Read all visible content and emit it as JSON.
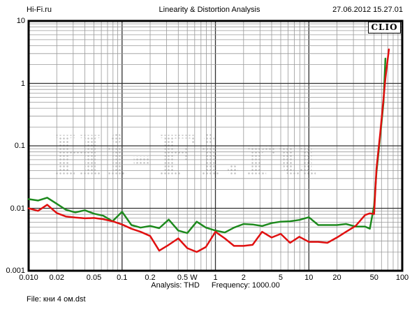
{
  "header": {
    "site": "Hi-Fi.ru",
    "title": "Linearity & Distortion Analysis",
    "datetime": "27.06.2012 15.27.01"
  },
  "overlay": {
    "logo": "CLIO",
    "watermark": "Hi-Fi.ru"
  },
  "footer": {
    "analysis": "Analysis: THD",
    "frequency": "Frequency: 1000.00",
    "file": "File: кни 4 ом.dst"
  },
  "chart_data": {
    "type": "line",
    "title": "Linearity & Distortion Analysis",
    "xlabel": "W",
    "ylabel": "THD",
    "x_axis": {
      "scale": "log",
      "min": 0.01,
      "max": 100,
      "unit": "W",
      "tick_values": [
        0.01,
        0.02,
        0.05,
        0.1,
        0.2,
        0.5,
        1,
        2,
        5,
        10,
        20,
        50,
        100
      ],
      "tick_labels": [
        "0.010",
        "0.02",
        "0.05",
        "0.1",
        "0.2",
        "0.5 W",
        "1",
        "2",
        "5",
        "10",
        "20",
        "50",
        "100"
      ]
    },
    "y_axis": {
      "scale": "log",
      "min": 0.001,
      "max": 10,
      "tick_values": [
        10,
        1,
        0.1,
        0.01,
        0.001
      ],
      "tick_labels": [
        "10",
        "1",
        "0.1",
        "0.01",
        "0.001"
      ]
    },
    "grid": "log major+minor",
    "legend": "none",
    "x": [
      0.01,
      0.0126,
      0.0158,
      0.02,
      0.025,
      0.0316,
      0.04,
      0.05,
      0.063,
      0.079,
      0.1,
      0.126,
      0.158,
      0.2,
      0.25,
      0.316,
      0.4,
      0.5,
      0.63,
      0.79,
      1,
      1.26,
      1.58,
      2,
      2.5,
      3.16,
      4,
      5,
      6.3,
      7.9,
      10,
      12.6,
      15.8,
      20,
      25,
      31.6,
      40,
      45,
      50,
      53,
      58,
      63,
      66,
      72
    ],
    "series": [
      {
        "name": "green-curve",
        "color": "#1e8a1e",
        "values": [
          0.014,
          0.0133,
          0.0148,
          0.0118,
          0.0095,
          0.0086,
          0.0093,
          0.0082,
          0.0076,
          0.0062,
          0.0088,
          0.0054,
          0.0049,
          0.0052,
          0.0048,
          0.0066,
          0.0044,
          0.004,
          0.0061,
          0.0049,
          0.0044,
          0.0041,
          0.0049,
          0.0056,
          0.0055,
          0.0052,
          0.0058,
          0.0061,
          0.0062,
          0.0065,
          0.0072,
          0.0054,
          0.0054,
          0.0054,
          0.0056,
          0.0051,
          0.0051,
          0.0047,
          0.011,
          0.038,
          0.14,
          0.5,
          2.5,
          null
        ]
      },
      {
        "name": "red-curve",
        "color": "#e01010",
        "values": [
          0.01,
          0.0091,
          0.0114,
          0.0084,
          0.0074,
          0.0071,
          0.0069,
          0.007,
          0.0067,
          0.0062,
          0.0055,
          0.0047,
          0.0042,
          0.0036,
          0.0021,
          0.0026,
          0.0033,
          0.0023,
          0.002,
          0.0024,
          0.0042,
          0.0033,
          0.0025,
          0.0025,
          0.0026,
          0.0042,
          0.0034,
          0.0039,
          0.0028,
          0.0035,
          0.0029,
          0.0029,
          0.0028,
          0.0034,
          0.0042,
          0.0052,
          0.0078,
          0.0083,
          0.0081,
          0.043,
          0.157,
          0.57,
          1.2,
          3.5
        ]
      }
    ]
  }
}
